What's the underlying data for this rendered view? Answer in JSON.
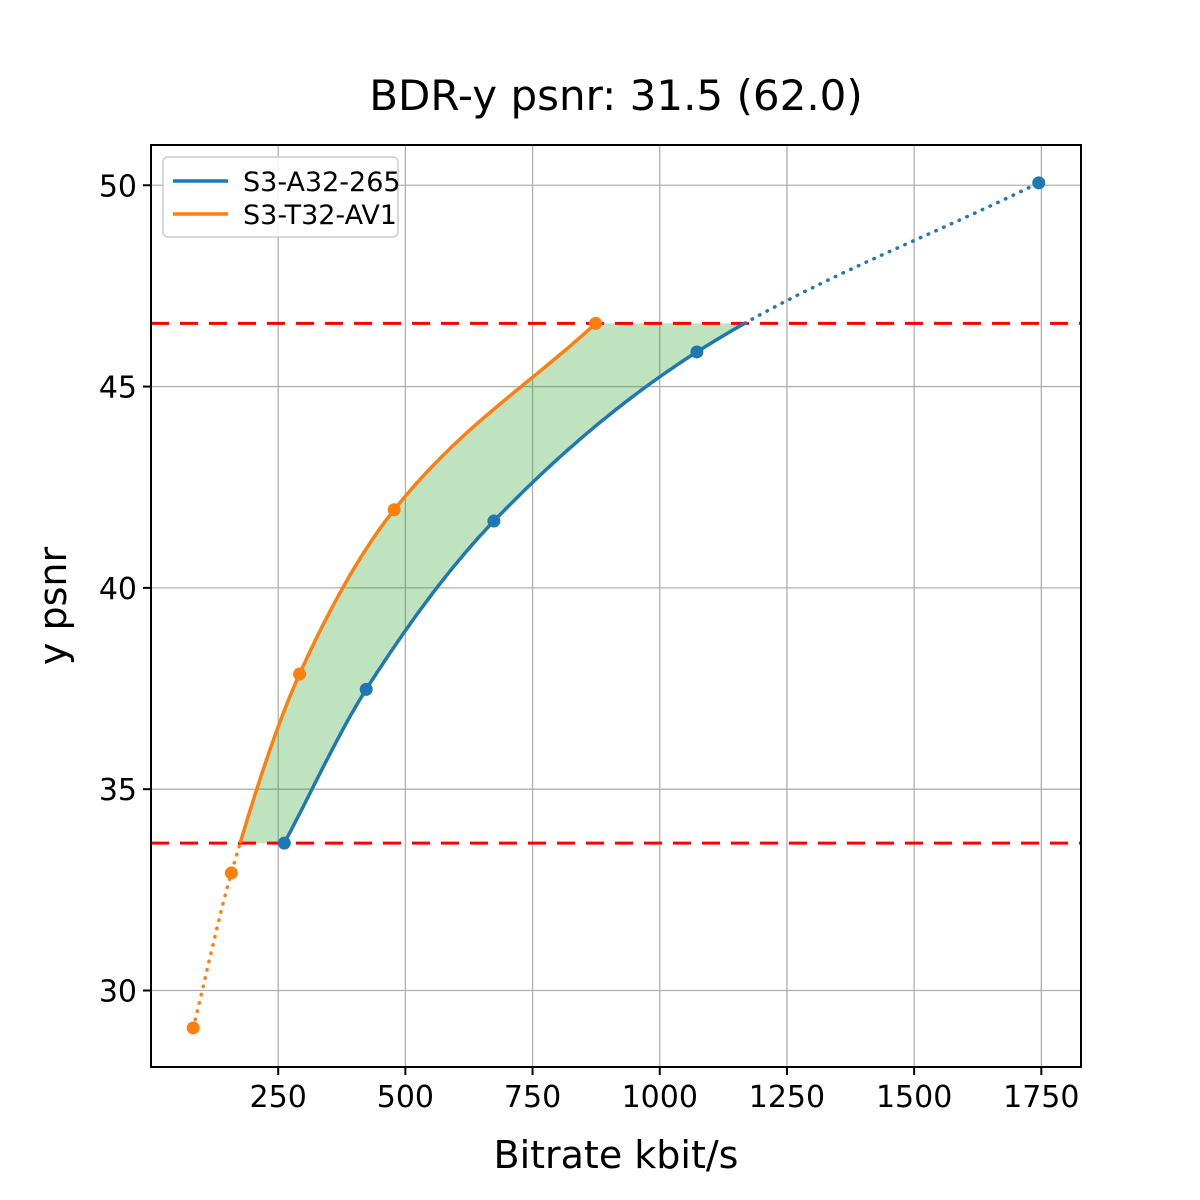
{
  "title": "BDR-y psnr: 31.5 (62.0)",
  "chart_data": {
    "type": "line",
    "title": "BDR-y psnr: 31.5 (62.0)",
    "xlabel": "Bitrate kbit/s",
    "ylabel": "y psnr",
    "xlim": [
      0,
      1828
    ],
    "ylim": [
      28.1,
      51.0
    ],
    "xticks": [
      250,
      500,
      750,
      1000,
      1250,
      1500,
      1750
    ],
    "yticks": [
      30,
      35,
      40,
      45,
      50
    ],
    "grid": true,
    "grid_color": "#b0b0b0",
    "legend_position": "upper left",
    "series": [
      {
        "name": "S3-A32-265",
        "color": "#1f77b4",
        "x": [
          262,
          423,
          674,
          1073,
          1745
        ],
        "y": [
          33.66,
          37.48,
          41.66,
          45.86,
          50.06
        ],
        "dotted_segment": "above upper bound (from bound crossing to last point)"
      },
      {
        "name": "S3-T32-AV1",
        "color": "#ff7f0e",
        "x": [
          83,
          158,
          292,
          478,
          874
        ],
        "y": [
          29.07,
          32.92,
          37.86,
          41.94,
          46.57
        ],
        "dotted_segment": "below lower bound (from first point to bound crossing)"
      }
    ],
    "bounds": {
      "lower_psnr": 33.66,
      "upper_psnr": 46.57,
      "color": "#ff0000",
      "style": "dashed"
    },
    "fill_between": {
      "color": "#2ca02c",
      "opacity": 0.3,
      "description": "BD-rate area between the two curves clipped to the psnr bounds"
    }
  }
}
